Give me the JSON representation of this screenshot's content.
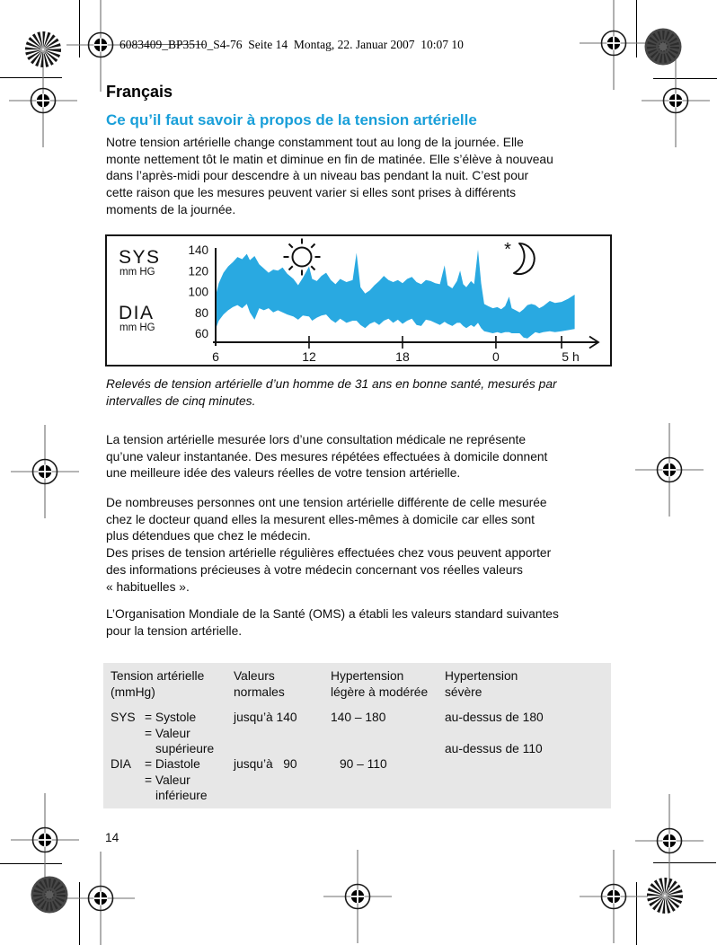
{
  "page": {
    "header_text": "6083409_BP3510_S4-76  Seite 14  Montag, 22. Januar 2007  10:07 10",
    "language_title": "Français",
    "section_title": "Ce qu’il faut savoir à propos de la tension artérielle",
    "page_number": "14",
    "paragraph1_lines": [
      "Notre tension artérielle change constamment tout au long de la journée. Elle",
      "monte nettement tôt le matin et diminue en fin de matinée. Elle s’élève à nouveau",
      "dans l’après-midi pour descendre à un niveau bas pendant la nuit. C’est pour",
      "cette raison que les mesures peuvent varier si elles sont prises à différents",
      "moments de la journée."
    ],
    "chart_caption_lines": [
      "Relevés de tension artérielle d’un homme de 31 ans en bonne santé, mesurés par",
      "intervalles de cinq minutes."
    ],
    "paragraph2_lines": [
      "La tension artérielle mesurée lors d’une consultation médicale ne représente",
      "qu’une valeur instantanée. Des mesures répétées effectuées à domicile donnent",
      "une meilleure idée des valeurs réelles de votre tension artérielle."
    ],
    "paragraph3_lines": [
      "De nombreuses personnes ont une tension artérielle différente de celle mesurée",
      "chez le docteur quand elles la mesurent elles-mêmes à domicile car elles sont",
      "plus détendues que chez le médecin.",
      "Des prises de tension artérielle régulières effectuées chez vous peuvent apporter",
      "des informations précieuses à votre médecin concernant vos réelles valeurs",
      "« habituelles »."
    ],
    "paragraph4_lines": [
      "L’Organisation Mondiale de la Santé (OMS) a établi les valeurs standard suivantes",
      "pour la tension artérielle."
    ]
  },
  "colors": {
    "accent_blue": "#199fd9",
    "band_blue": "#29a9e1",
    "table_bg": "#e7e7e7",
    "ink": "#111111"
  },
  "chart_data": {
    "type": "area",
    "description": "Band between systolic (SYS) and diastolic (DIA) blood pressure over 24h, measured every 5 minutes",
    "sys_label": "SYS",
    "sys_unit": "mm HG",
    "dia_label": "DIA",
    "dia_unit": "mm HG",
    "star_glyph": "*",
    "icons": [
      "sun-icon",
      "moon-icon",
      "star-icon"
    ],
    "x_tick_labels": [
      "6",
      "12",
      "18",
      "0",
      "5 h"
    ],
    "x_tick_hours": [
      6,
      12,
      18,
      24,
      29
    ],
    "y_ticks": [
      140,
      120,
      100,
      80,
      60
    ],
    "ylim": [
      50,
      145
    ],
    "grid": false,
    "hours": [
      6.0,
      6.2,
      6.5,
      6.8,
      7.1,
      7.4,
      7.7,
      8.0,
      8.2,
      8.5,
      8.8,
      9.1,
      9.4,
      9.7,
      10.0,
      10.3,
      10.6,
      11.0,
      11.3,
      11.6,
      12.0,
      12.2,
      12.5,
      12.8,
      13.1,
      13.4,
      13.7,
      14.0,
      14.4,
      14.8,
      15.05,
      15.3,
      15.6,
      15.9,
      16.2,
      16.5,
      16.8,
      17.1,
      17.4,
      17.7,
      18.0,
      18.3,
      18.6,
      18.9,
      19.2,
      19.5,
      19.8,
      20.1,
      20.4,
      20.7,
      20.9,
      21.2,
      21.5,
      21.7,
      21.9,
      22.1,
      22.4,
      22.6,
      22.85,
      23.05,
      23.25,
      23.5,
      23.8,
      24.1,
      24.4,
      24.7,
      25.0,
      25.2,
      25.5,
      25.8,
      26.1,
      26.4,
      26.7,
      27.0,
      27.3,
      27.6,
      28.1,
      28.5,
      29.0,
      29.5,
      30.0
    ],
    "series": [
      {
        "name": "SYS",
        "values": [
          96,
          108,
          118,
          124,
          128,
          133,
          131,
          136,
          130,
          134,
          126,
          122,
          118,
          121,
          120,
          123,
          117,
          112,
          106,
          113,
          124,
          112,
          110,
          115,
          118,
          111,
          107,
          112,
          109,
          111,
          137,
          104,
          98,
          101,
          106,
          110,
          115,
          111,
          109,
          111,
          108,
          112,
          114,
          109,
          107,
          111,
          110,
          108,
          107,
          125,
          106,
          103,
          110,
          120,
          107,
          104,
          110,
          107,
          140,
          108,
          88,
          86,
          84,
          85,
          83,
          86,
          95,
          84,
          82,
          80,
          83,
          87,
          88,
          87,
          84,
          86,
          91,
          89,
          90,
          93,
          97
        ]
      },
      {
        "name": "DIA",
        "values": [
          64,
          72,
          78,
          82,
          85,
          87,
          84,
          88,
          80,
          73,
          84,
          82,
          84,
          80,
          82,
          80,
          78,
          76,
          73,
          77,
          76,
          72,
          75,
          77,
          78,
          73,
          70,
          74,
          70,
          72,
          72,
          68,
          65,
          69,
          71,
          68,
          72,
          74,
          70,
          73,
          69,
          72,
          74,
          68,
          67,
          73,
          72,
          70,
          68,
          71,
          69,
          67,
          70,
          70,
          67,
          65,
          68,
          66,
          70,
          65,
          62,
          61,
          60,
          61,
          60,
          61,
          61,
          60,
          60,
          60,
          56,
          55,
          58,
          61,
          60,
          61,
          62,
          61,
          62,
          63,
          64
        ]
      }
    ]
  },
  "table": {
    "headers": [
      [
        "Tension artérielle",
        "(mmHg)"
      ],
      [
        "Valeurs",
        "normales"
      ],
      [
        "Hypertension",
        "légère à modérée"
      ],
      [
        "Hypertension",
        "sévère"
      ]
    ],
    "sys_label": "SYS",
    "dia_label": "DIA",
    "sys_lines": [
      "= Systole",
      "= Valeur",
      "supérieure"
    ],
    "dia_lines": [
      "= Diastole",
      "= Valeur",
      "inférieure"
    ],
    "normal_sys": "jusqu’à 140",
    "normal_dia": "jusqu’à   90",
    "mild_sys": "140 – 180",
    "mild_dia": "90 – 110",
    "severe_sys": "au-dessus de 180",
    "severe_dia": "au-dessus de 110"
  }
}
